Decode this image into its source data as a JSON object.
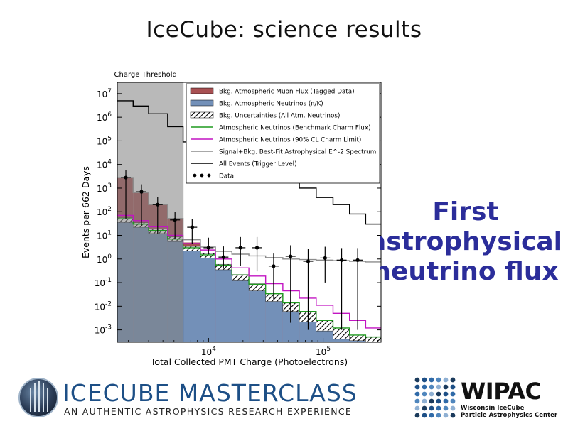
{
  "slide": {
    "title": "IceCube: science results",
    "callout": [
      "First",
      "astrophysical",
      "neutrino flux"
    ]
  },
  "logos": {
    "masterclass_title": "ICECUBE MASTERCLASS",
    "masterclass_subtitle": "AN AUTHENTIC ASTROPHYSICS RESEARCH EXPERIENCE",
    "wipac_name": "WIPAC",
    "wipac_line1": "Wisconsin IceCube",
    "wipac_line2": "Particle Astrophysics Center"
  },
  "colors": {
    "muon": "#a85052",
    "atm_nu": "#7390b8",
    "threshold_shade": "#808080",
    "benchmark": "#1f9a1f",
    "charm90": "#c214c2",
    "signal": "#8c8c8c",
    "all_events": "#000000",
    "callout": "#2b2d9a",
    "masterclass": "#1d4f86"
  },
  "chart_data": {
    "type": "line",
    "title": "",
    "xlabel": "Total Collected PMT Charge (Photoelectrons)",
    "ylabel": "Events per 662 Days",
    "x_scale": "log",
    "y_scale": "log",
    "xlim": [
      1600,
      320000
    ],
    "ylim": [
      0.0003,
      30000000
    ],
    "x_ticks": [
      {
        "value": 10000,
        "label": "10^4"
      },
      {
        "value": 100000,
        "label": "10^5"
      }
    ],
    "y_ticks": [
      {
        "value": 0.001,
        "label": "10^-3"
      },
      {
        "value": 0.01,
        "label": "10^-2"
      },
      {
        "value": 0.1,
        "label": "10^-1"
      },
      {
        "value": 1,
        "label": "10^0"
      },
      {
        "value": 10,
        "label": "10^1"
      },
      {
        "value": 100,
        "label": "10^2"
      },
      {
        "value": 1000,
        "label": "10^3"
      },
      {
        "value": 10000,
        "label": "10^4"
      },
      {
        "value": 100000,
        "label": "10^5"
      },
      {
        "value": 1000000,
        "label": "10^6"
      },
      {
        "value": 10000000,
        "label": "10^7"
      }
    ],
    "threshold": {
      "label": "Charge Threshold",
      "value": 6000
    },
    "bin_edges": [
      1600,
      2200,
      3000,
      4400,
      6000,
      8500,
      11500,
      16000,
      22500,
      31500,
      44500,
      62000,
      87000,
      122000,
      170000,
      235000,
      320000
    ],
    "series": [
      {
        "name": "Bkg. Atmospheric Muon Flux (Tagged Data)",
        "kind": "filled",
        "values": [
          2800,
          650,
          200,
          50,
          5,
          1.2,
          0.35,
          0.12,
          0.04,
          0.015,
          0.006,
          0.002,
          0.0008,
          0.0004,
          0.00035,
          0.0003
        ]
      },
      {
        "name": "Bkg. Atmospheric Neutrinos (π/K)",
        "kind": "filled",
        "values": [
          35,
          22,
          12,
          5.5,
          2.2,
          1.1,
          0.35,
          0.12,
          0.045,
          0.016,
          0.006,
          0.0022,
          0.0009,
          0.0004,
          0.00035,
          0.0003
        ]
      },
      {
        "name": "Bkg. Uncertainties (All Atm. Neutrinos)",
        "kind": "hatched",
        "lower": [
          35,
          22,
          12,
          5.5,
          2.2,
          1.1,
          0.35,
          0.12,
          0.045,
          0.016,
          0.006,
          0.0022,
          0.0009,
          0.0004,
          0.00035,
          0.0003
        ],
        "upper": [
          55,
          34,
          19,
          8.5,
          3.4,
          1.7,
          0.6,
          0.22,
          0.09,
          0.035,
          0.014,
          0.006,
          0.0025,
          0.0012,
          0.0006,
          0.0005
        ]
      },
      {
        "name": "Atmospheric Neutrinos (Benchmark Charm Flux)",
        "kind": "step",
        "values": [
          50,
          30,
          16,
          7,
          3,
          1.5,
          0.55,
          0.21,
          0.085,
          0.034,
          0.014,
          0.006,
          0.0025,
          0.0012,
          0.0006,
          0.0005
        ]
      },
      {
        "name": "Atmospheric Neutrinos (90% CL Charm Limit)",
        "kind": "step",
        "values": [
          70,
          42,
          23,
          10,
          4.5,
          2.4,
          1.0,
          0.42,
          0.19,
          0.09,
          0.045,
          0.022,
          0.011,
          0.005,
          0.0025,
          0.0012
        ]
      },
      {
        "name": "Signal+Bkg. Best-Fit Astrophysical E^-2 Spectrum",
        "kind": "step",
        "values": [
          2800,
          650,
          200,
          52,
          6.5,
          3.2,
          2.1,
          1.6,
          1.35,
          1.15,
          1.0,
          0.95,
          0.9,
          0.85,
          0.8,
          0.75
        ]
      },
      {
        "name": "All Events (Trigger Level)",
        "kind": "step",
        "values": [
          5000000,
          3000000,
          1400000,
          400000,
          90000,
          70000,
          50000,
          25000,
          10000,
          5000,
          2000,
          1000,
          400,
          200,
          80,
          30
        ]
      },
      {
        "name": "Data",
        "kind": "points",
        "x": [
          1900,
          2600,
          3600,
          5100,
          7200,
          10000,
          13500,
          19000,
          26500,
          37000,
          52000,
          74000,
          104000,
          145000,
          200000
        ],
        "y": [
          2800,
          700,
          200,
          45,
          22,
          3,
          1.2,
          3,
          3,
          0.5,
          1.3,
          0.8,
          1.1,
          0.9,
          0.9
        ],
        "yerr_low": [
          2750,
          675,
          188,
          38,
          17.5,
          1.4,
          0.8,
          2.5,
          2.7,
          0.48,
          1.298,
          0.799,
          0.999,
          0.899,
          0.899
        ],
        "yerr_high": [
          3000,
          750,
          215,
          52,
          27,
          5,
          2.2,
          5.5,
          5.5,
          1.2,
          2.5,
          1.8,
          2.2,
          2.0,
          2.0
        ]
      }
    ],
    "legend_position": "top-right",
    "grid": true
  }
}
